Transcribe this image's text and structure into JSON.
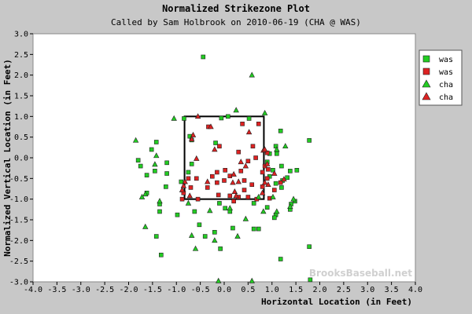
{
  "chart_data": {
    "type": "scatter",
    "title": "Normalized Strikezone Plot",
    "subtitle": "Called by Sam Holbrook on 2010-06-19 (CHA @ WAS)",
    "xlabel": "Horizontal Location (in Feet)",
    "ylabel": "Normalized Vertical Location (in Feet)",
    "xlim": [
      -4.0,
      4.0
    ],
    "ylim": [
      -3.0,
      3.0
    ],
    "x_ticks": [
      -4.0,
      -3.5,
      -3.0,
      -2.5,
      -2.0,
      -1.5,
      -1.0,
      -0.5,
      0.0,
      0.5,
      1.0,
      1.5,
      2.0,
      2.5,
      3.0,
      3.5,
      4.0
    ],
    "x_tick_labels": [
      "-4.0",
      "-3.5",
      "-3.0",
      "-2.5",
      "-2.0",
      "-1.5",
      "-1.0",
      "-0.5",
      "0.0",
      "0.5",
      "1.0",
      "1.5",
      "2.0",
      "2.5",
      "3.0",
      "3.5",
      "4.0"
    ],
    "y_ticks": [
      3.0,
      2.5,
      2.0,
      1.5,
      1.0,
      0.5,
      0.0,
      -0.5,
      -1.0,
      -1.5,
      -2.0,
      -2.5,
      -3.0
    ],
    "y_tick_labels": [
      "3.0",
      "2.5",
      "2.0",
      "1.5",
      "1.0",
      "0.5",
      "0.0",
      "-0.5",
      "-1.0",
      "-1.5",
      "-2.0",
      "-2.5",
      "-3.0"
    ],
    "grid": false,
    "legend_position": "top-right",
    "strike_zone": {
      "x": [
        -0.83,
        0.83
      ],
      "y": [
        -1.0,
        1.0
      ]
    },
    "watermark": "BrooksBaseball.net",
    "colors": {
      "green": "#22cc22",
      "red": "#dd2222",
      "background": "#c8c8c8",
      "plot": "#ffffff"
    },
    "series": [
      {
        "name": "was",
        "marker": "square",
        "color": "#22cc22",
        "points": [
          [
            -0.44,
            2.44
          ],
          [
            -0.84,
            0.95
          ],
          [
            -0.06,
            0.96
          ],
          [
            0.08,
            1.0
          ],
          [
            0.52,
            0.95
          ],
          [
            1.18,
            0.65
          ],
          [
            1.78,
            0.42
          ],
          [
            -0.72,
            0.52
          ],
          [
            -0.68,
            0.43
          ],
          [
            -0.18,
            0.36
          ],
          [
            -1.8,
            -0.06
          ],
          [
            -1.75,
            -0.2
          ],
          [
            -1.62,
            -0.42
          ],
          [
            -1.45,
            -0.32
          ],
          [
            -1.42,
            0.38
          ],
          [
            -1.52,
            0.2
          ],
          [
            -1.2,
            -0.12
          ],
          [
            -1.2,
            -0.38
          ],
          [
            -0.75,
            -0.35
          ],
          [
            -0.68,
            -0.15
          ],
          [
            -0.9,
            -0.58
          ],
          [
            -1.22,
            -0.7
          ],
          [
            -1.62,
            -0.85
          ],
          [
            -1.35,
            -1.12
          ],
          [
            -1.35,
            -1.3
          ],
          [
            -0.98,
            -1.38
          ],
          [
            -0.62,
            -1.3
          ],
          [
            -0.1,
            -1.1
          ],
          [
            0.02,
            -1.22
          ],
          [
            0.12,
            -1.3
          ],
          [
            0.62,
            -1.1
          ],
          [
            0.9,
            -1.2
          ],
          [
            1.08,
            -1.38
          ],
          [
            -0.52,
            -1.62
          ],
          [
            -0.4,
            -1.9
          ],
          [
            -0.2,
            -1.8
          ],
          [
            -0.08,
            -2.2
          ],
          [
            0.18,
            -1.7
          ],
          [
            0.62,
            -1.72
          ],
          [
            0.72,
            -1.72
          ],
          [
            1.38,
            -1.25
          ],
          [
            1.4,
            -1.12
          ],
          [
            1.48,
            -1.05
          ],
          [
            1.18,
            -2.45
          ],
          [
            1.05,
            -1.45
          ],
          [
            -1.42,
            -1.9
          ],
          [
            -1.32,
            -2.35
          ],
          [
            1.78,
            -2.15
          ],
          [
            1.22,
            -0.55
          ],
          [
            1.32,
            -0.48
          ],
          [
            1.08,
            -0.62
          ],
          [
            1.2,
            -0.72
          ],
          [
            1.38,
            -0.32
          ],
          [
            1.08,
            0.28
          ],
          [
            0.95,
            0.1
          ],
          [
            0.9,
            -0.1
          ],
          [
            1.1,
            0.1
          ],
          [
            1.2,
            -0.2
          ],
          [
            1.02,
            -0.3
          ],
          [
            0.95,
            -0.45
          ],
          [
            1.52,
            -0.3
          ],
          [
            1.8,
            -2.95
          ]
        ]
      },
      {
        "name": "was",
        "marker": "square",
        "color": "#dd2222",
        "points": [
          [
            -0.33,
            0.75
          ],
          [
            0.38,
            0.82
          ],
          [
            0.72,
            0.82
          ],
          [
            -0.1,
            0.28
          ],
          [
            0.6,
            0.28
          ],
          [
            0.3,
            0.14
          ],
          [
            0.5,
            -0.08
          ],
          [
            0.35,
            -0.32
          ],
          [
            0.12,
            -0.44
          ],
          [
            0.0,
            -0.55
          ],
          [
            -0.15,
            -0.6
          ],
          [
            0.42,
            -0.55
          ],
          [
            0.8,
            -0.35
          ],
          [
            0.8,
            -0.7
          ],
          [
            0.58,
            -0.65
          ],
          [
            0.42,
            -0.78
          ],
          [
            0.5,
            -0.95
          ],
          [
            0.3,
            -0.95
          ],
          [
            0.2,
            -1.05
          ],
          [
            -0.35,
            -0.72
          ],
          [
            -0.58,
            -0.5
          ],
          [
            -0.7,
            -0.72
          ],
          [
            -0.85,
            -0.85
          ],
          [
            -0.25,
            -0.45
          ],
          [
            -0.12,
            -0.9
          ],
          [
            0.12,
            -0.92
          ],
          [
            -0.15,
            -0.35
          ],
          [
            0.9,
            -0.5
          ],
          [
            1.18,
            -0.6
          ],
          [
            1.05,
            -0.78
          ],
          [
            0.85,
            -0.2
          ],
          [
            0.92,
            -0.28
          ],
          [
            -0.88,
            -1.0
          ],
          [
            -0.55,
            -1.0
          ],
          [
            0.68,
            -1.0
          ],
          [
            0.9,
            0.12
          ],
          [
            -0.75,
            -0.5
          ],
          [
            0.66,
            0.0
          ],
          [
            0.02,
            -0.3
          ],
          [
            0.95,
            -0.98
          ]
        ]
      },
      {
        "name": "cha",
        "marker": "triangle",
        "color": "#22cc22",
        "points": [
          [
            0.58,
            2.0
          ],
          [
            0.25,
            1.15
          ],
          [
            0.85,
            1.08
          ],
          [
            -1.05,
            0.95
          ],
          [
            -1.42,
            0.05
          ],
          [
            -1.45,
            -0.16
          ],
          [
            -1.65,
            -0.88
          ],
          [
            -1.72,
            -0.95
          ],
          [
            -1.65,
            -1.67
          ],
          [
            -1.35,
            -1.05
          ],
          [
            -1.85,
            0.42
          ],
          [
            -0.68,
            -1.88
          ],
          [
            -0.6,
            -2.2
          ],
          [
            -0.2,
            -2.0
          ],
          [
            0.28,
            -1.9
          ],
          [
            0.58,
            -2.98
          ],
          [
            -0.12,
            -2.98
          ],
          [
            1.1,
            -1.3
          ],
          [
            1.38,
            -1.18
          ],
          [
            1.45,
            -1.0
          ],
          [
            1.28,
            0.28
          ],
          [
            1.02,
            -0.95
          ],
          [
            0.72,
            -0.95
          ],
          [
            0.12,
            -1.22
          ],
          [
            0.45,
            -1.48
          ],
          [
            0.82,
            -1.3
          ],
          [
            -0.3,
            -1.28
          ],
          [
            -0.75,
            -1.1
          ],
          [
            1.1,
            0.2
          ]
        ]
      },
      {
        "name": "cha",
        "marker": "triangle",
        "color": "#dd2222",
        "points": [
          [
            -0.55,
            1.0
          ],
          [
            -0.28,
            0.75
          ],
          [
            -0.65,
            0.55
          ],
          [
            0.52,
            0.62
          ],
          [
            0.82,
            0.18
          ],
          [
            0.9,
            -0.15
          ],
          [
            0.85,
            -0.6
          ],
          [
            0.3,
            -0.58
          ],
          [
            0.35,
            -0.1
          ],
          [
            -0.58,
            -0.02
          ],
          [
            -0.35,
            -0.58
          ],
          [
            0.18,
            -0.6
          ],
          [
            -0.82,
            -0.58
          ],
          [
            -0.85,
            -0.68
          ],
          [
            -0.88,
            -0.78
          ],
          [
            -0.72,
            -0.92
          ],
          [
            1.25,
            -0.52
          ],
          [
            1.05,
            -0.38
          ],
          [
            0.2,
            -0.4
          ],
          [
            0.22,
            -0.82
          ],
          [
            0.25,
            -0.92
          ],
          [
            0.8,
            -0.85
          ],
          [
            0.92,
            -0.65
          ],
          [
            -0.68,
            0.45
          ],
          [
            0.45,
            -0.2
          ],
          [
            0.85,
            0.2
          ],
          [
            -0.2,
            0.2
          ]
        ]
      }
    ]
  }
}
